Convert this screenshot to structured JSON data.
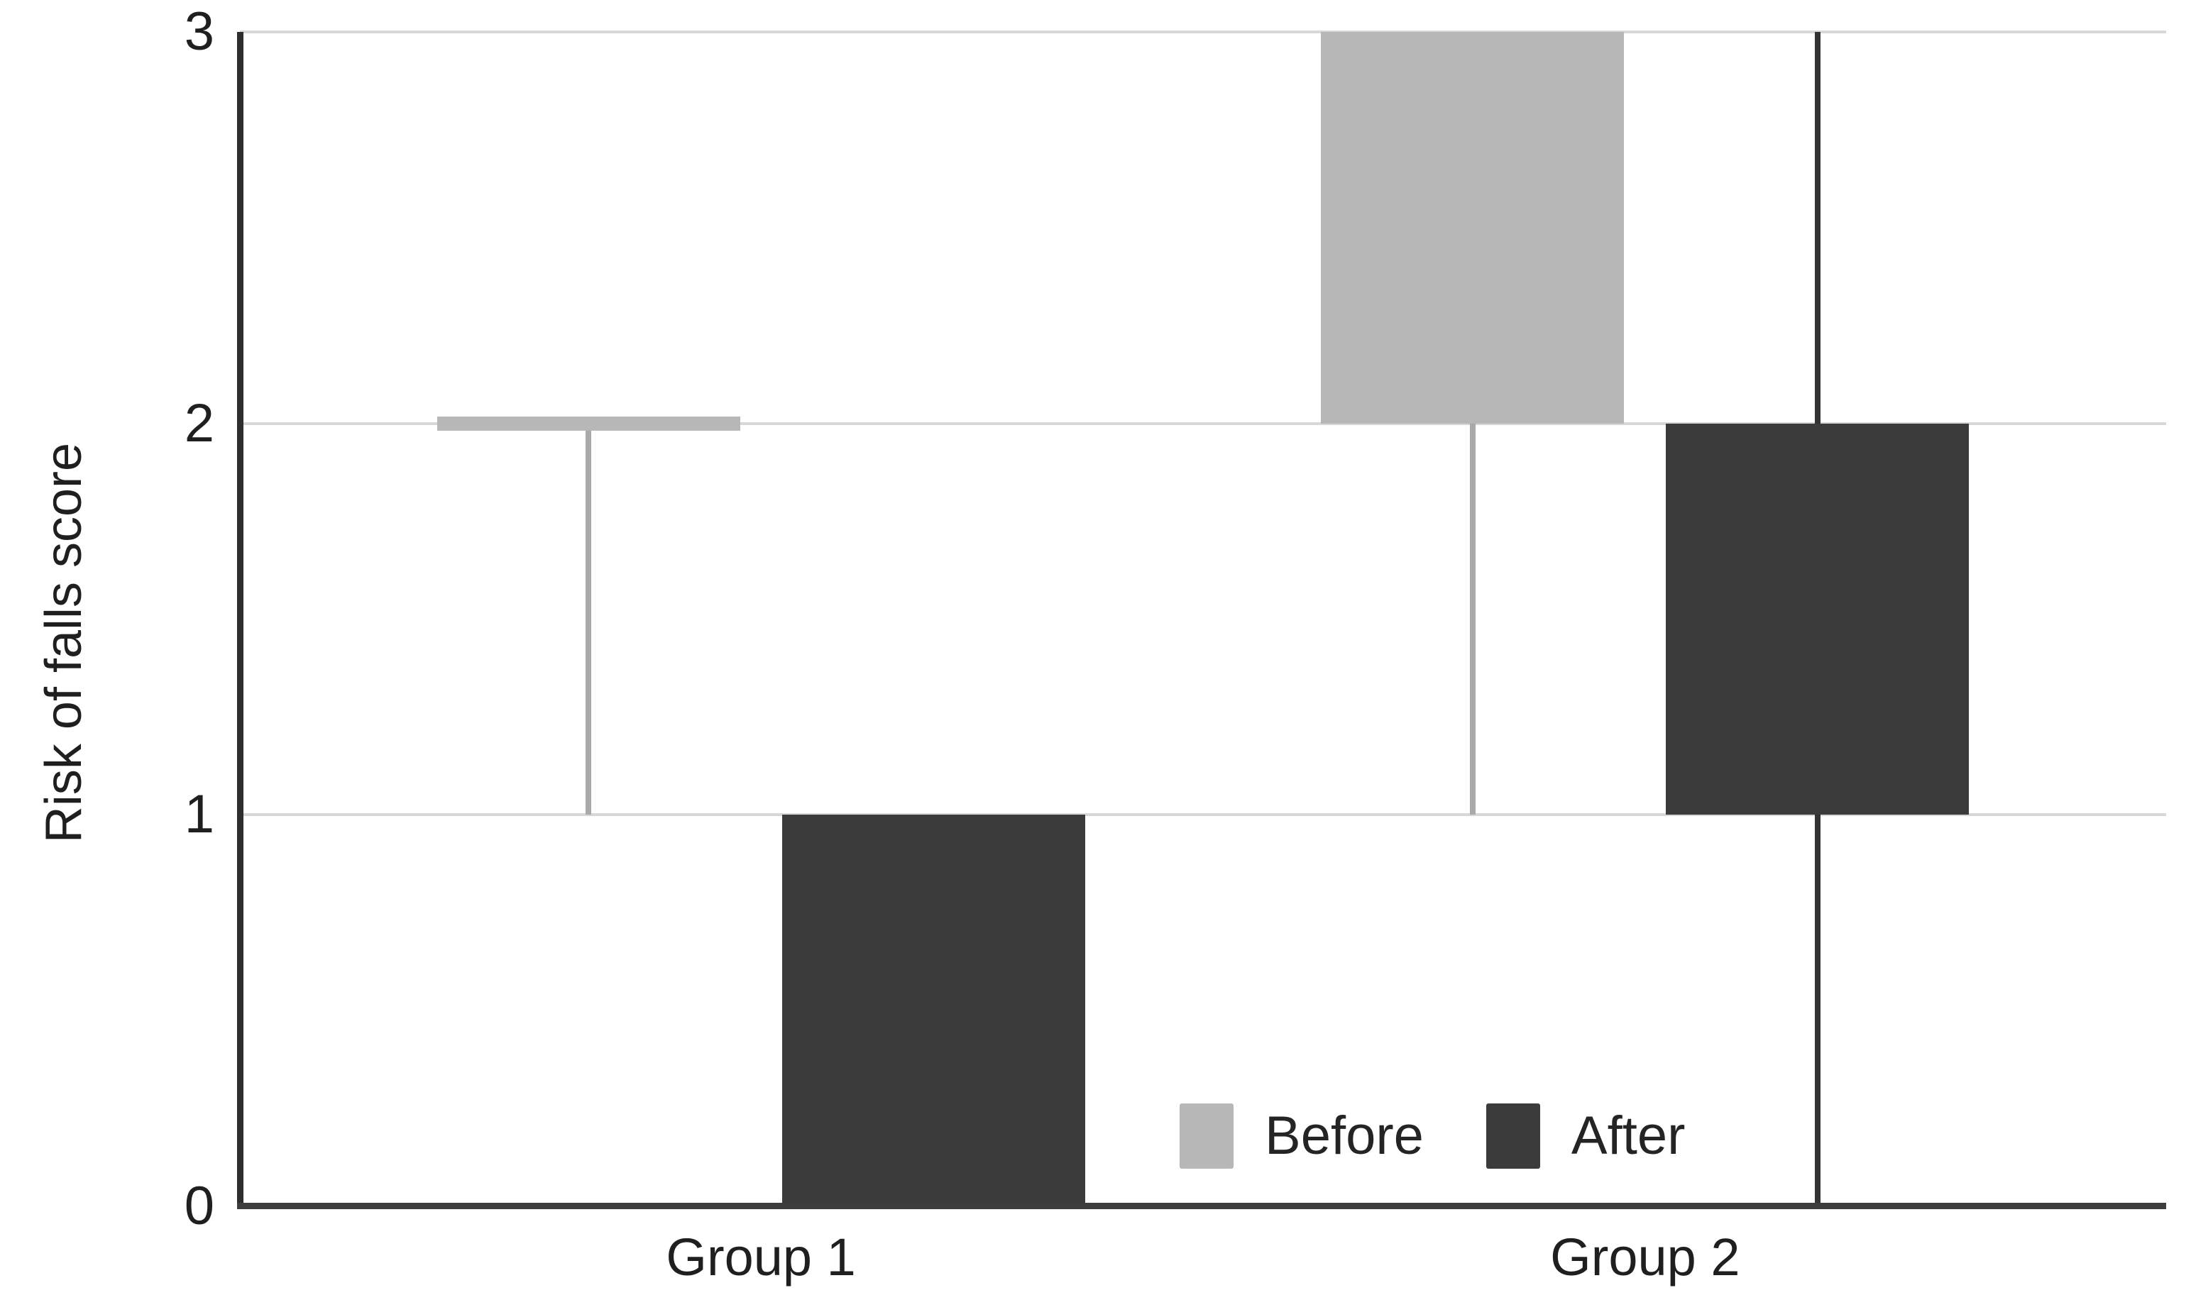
{
  "chart_data": {
    "type": "box",
    "title": "",
    "ylabel": "Risk of falls score",
    "xlabel": "",
    "ylim": [
      0,
      3
    ],
    "y_ticks": [
      "0",
      "1",
      "2",
      "3"
    ],
    "categories": [
      "Group 1",
      "Group 2"
    ],
    "grid": "horizontal-light",
    "background": "#ffffff",
    "legend": {
      "position": "inside-bottom-center",
      "items": [
        {
          "label": "Before",
          "color": "#b7b7b7"
        },
        {
          "label": "After",
          "color": "#3b3b3b"
        }
      ]
    },
    "series": [
      {
        "name": "Before",
        "color": "#b7b7b7",
        "whisker_color": "#a9a9a9",
        "boxes": [
          {
            "category": "Group 1",
            "box_low": 2,
            "box_high": 2,
            "whisker_low": 1,
            "whisker_high": 2
          },
          {
            "category": "Group 2",
            "box_low": 2,
            "box_high": 3,
            "whisker_low": 1,
            "whisker_high": 2
          }
        ]
      },
      {
        "name": "After",
        "color": "#3b3b3b",
        "whisker_color": "#333333",
        "boxes": [
          {
            "category": "Group 1",
            "box_low": 0,
            "box_high": 1,
            "whisker_low": null,
            "whisker_high": null
          },
          {
            "category": "Group 2",
            "box_low": 1,
            "box_high": 2,
            "whisker_low": 0,
            "whisker_high": 3
          }
        ]
      }
    ]
  }
}
